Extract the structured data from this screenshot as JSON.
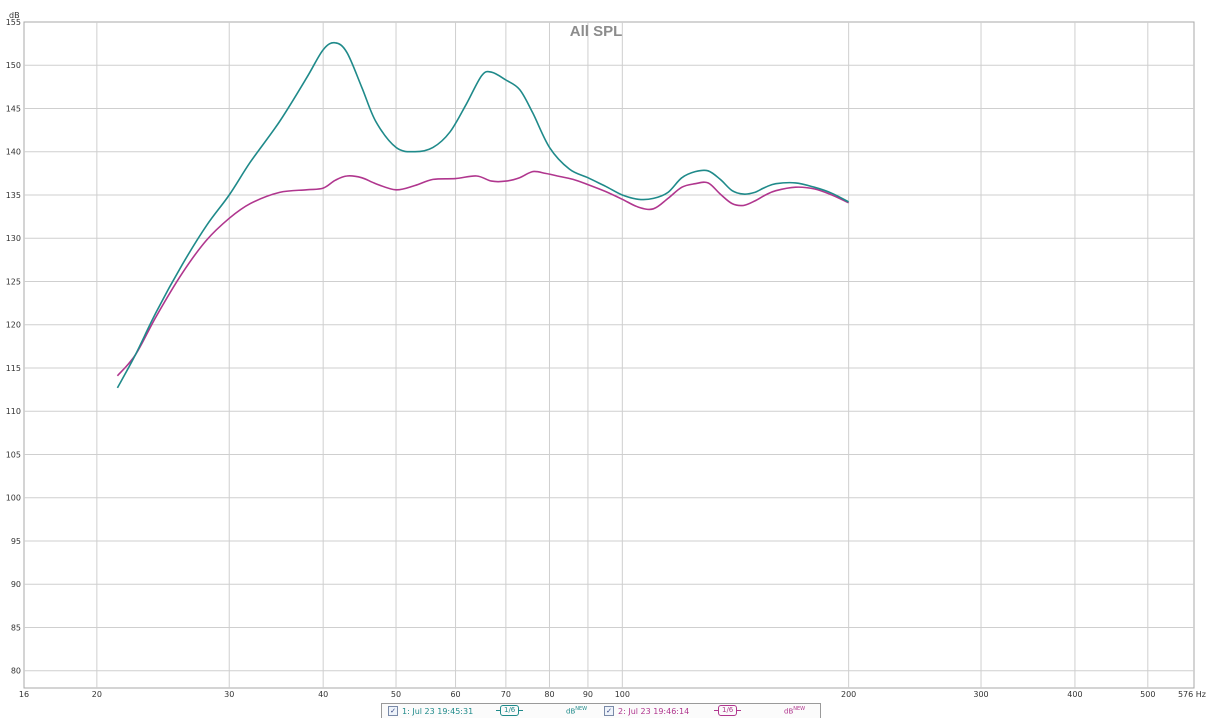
{
  "chart_data": {
    "type": "line",
    "title": "All SPL",
    "ylabel": "dB",
    "xunit": "Hz",
    "xscale": "log",
    "xlim": [
      16,
      576
    ],
    "ylim": [
      78,
      155
    ],
    "grid": true,
    "xticks": [
      16,
      20,
      30,
      40,
      50,
      60,
      70,
      80,
      90,
      100,
      200,
      300,
      400,
      500,
      576
    ],
    "xtick_labels": [
      "16",
      "20",
      "30",
      "40",
      "50",
      "60",
      "70",
      "80",
      "90",
      "100",
      "200",
      "300",
      "400",
      "500",
      "576 Hz"
    ],
    "yticks": [
      80,
      85,
      90,
      95,
      100,
      105,
      110,
      115,
      120,
      125,
      130,
      135,
      140,
      145,
      150,
      155
    ],
    "series": [
      {
        "name": "1: Jul 23 19:45:31",
        "color": "#1f8a8a",
        "x": [
          21.3,
          22.5,
          24,
          26,
          28,
          30,
          32,
          35,
          38,
          40,
          41.5,
          43,
          45,
          47,
          50,
          53,
          56,
          59,
          62,
          65,
          67,
          70,
          73,
          76,
          80,
          85,
          90,
          95,
          100,
          105,
          110,
          115,
          120,
          125,
          130,
          135,
          140,
          145,
          150,
          155,
          160,
          170,
          180,
          190,
          200
        ],
        "values": [
          112.7,
          116.5,
          121.5,
          127,
          131.5,
          135,
          138.8,
          143.5,
          148.5,
          151.8,
          152.6,
          151.5,
          147.5,
          143.5,
          140.5,
          140,
          140.5,
          142.3,
          145.5,
          148.8,
          149.2,
          148.3,
          147.2,
          144.5,
          140.5,
          138,
          137,
          136,
          135,
          134.5,
          134.6,
          135.3,
          137,
          137.7,
          137.8,
          136.8,
          135.5,
          135.1,
          135.3,
          135.9,
          136.3,
          136.4,
          135.9,
          135.2,
          134.2
        ]
      },
      {
        "name": "2: Jul 23 19:46:14",
        "color": "#b0368e",
        "x": [
          21.3,
          22.5,
          24,
          26,
          28,
          30,
          32,
          35,
          38,
          40,
          41.5,
          43,
          45,
          47,
          50,
          53,
          56,
          60,
          64,
          67,
          70,
          73,
          76,
          79,
          82,
          86,
          90,
          95,
          100,
          105,
          110,
          115,
          120,
          125,
          130,
          135,
          140,
          145,
          150,
          155,
          160,
          170,
          180,
          190,
          200
        ],
        "values": [
          114.1,
          116.5,
          121,
          126,
          129.8,
          132.3,
          134,
          135.3,
          135.6,
          135.8,
          136.7,
          137.2,
          137,
          136.3,
          135.6,
          136.1,
          136.8,
          136.9,
          137.2,
          136.6,
          136.6,
          137,
          137.7,
          137.5,
          137.2,
          136.8,
          136.2,
          135.4,
          134.5,
          133.6,
          133.4,
          134.6,
          135.9,
          136.3,
          136.4,
          135.1,
          134,
          133.8,
          134.3,
          135,
          135.5,
          135.9,
          135.7,
          135,
          134.1
        ]
      }
    ]
  },
  "legend": {
    "items": [
      {
        "label": "1: Jul 23 19:45:31",
        "checked": true,
        "smoothing": "1/6",
        "unit": "dB",
        "unit_sup": "NEW",
        "color": "#1f8a8a"
      },
      {
        "label": "2: Jul 23 19:46:14",
        "checked": true,
        "smoothing": "1/6",
        "unit": "dB",
        "unit_sup": "NEW",
        "color": "#b0368e"
      }
    ]
  }
}
